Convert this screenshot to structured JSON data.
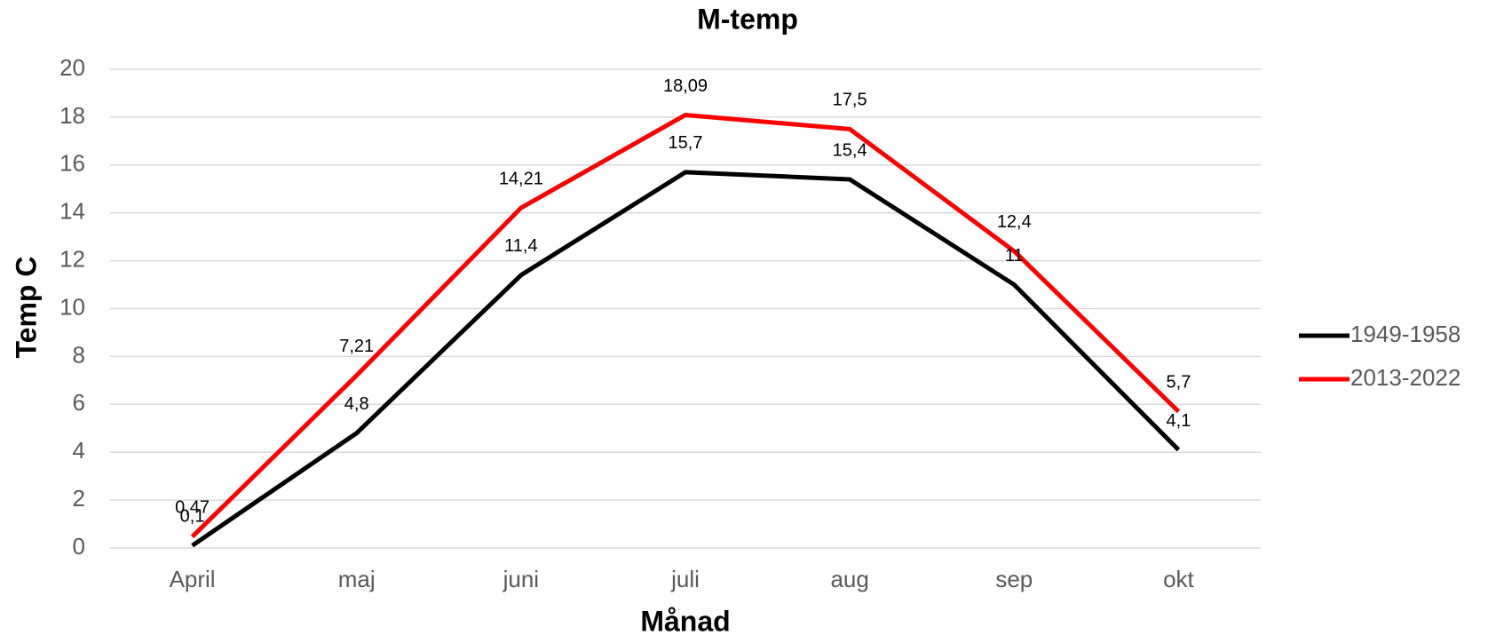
{
  "chart_data": {
    "type": "line",
    "title": "M-temp",
    "x_label": "Månad",
    "y_label": "Temp C",
    "categories": [
      "April",
      "maj",
      "juni",
      "juli",
      "aug",
      "sep",
      "okt"
    ],
    "series": [
      {
        "name": "1949-1958",
        "color": "#000000",
        "values": [
          0.1,
          4.8,
          11.4,
          15.7,
          15.4,
          11,
          4.1
        ],
        "value_labels": [
          "0,1",
          "4,8",
          "11,4",
          "15,7",
          "15,4",
          "11",
          "4,1"
        ]
      },
      {
        "name": "2013-2022",
        "color": "#ff0000",
        "values": [
          0.47,
          7.21,
          14.21,
          18.09,
          17.5,
          12.4,
          5.7
        ],
        "value_labels": [
          "0,47",
          "7,21",
          "14,21",
          "18,09",
          "17,5",
          "12,4",
          "5,7"
        ]
      }
    ],
    "ylim": [
      0,
      20
    ],
    "yticks": [
      0,
      2,
      4,
      6,
      8,
      10,
      12,
      14,
      16,
      18,
      20
    ],
    "grid": true,
    "legend": "right"
  }
}
